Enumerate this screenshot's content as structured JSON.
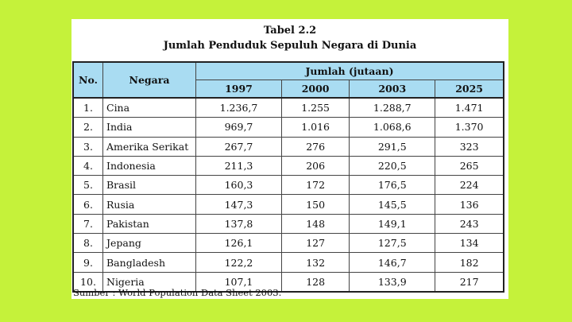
{
  "table_label": "Tabel 2.2",
  "table_title": "Jumlah Penduduk Sepuluh Negara di Dunia",
  "headers": {
    "no": "No.",
    "negara": "Negara",
    "jumlah": "Jumlah (jutaan)",
    "years": [
      "1997",
      "2000",
      "2003",
      "2025"
    ]
  },
  "rows": [
    {
      "no": "1.",
      "country": "Cina",
      "v1997": "1.236,7",
      "v2000": "1.255",
      "v2003": "1.288,7",
      "v2025": "1.471"
    },
    {
      "no": "2.",
      "country": "India",
      "v1997": "969,7",
      "v2000": "1.016",
      "v2003": "1.068,6",
      "v2025": "1.370"
    },
    {
      "no": "3.",
      "country": "Amerika Serikat",
      "v1997": "267,7",
      "v2000": "276",
      "v2003": "291,5",
      "v2025": "323"
    },
    {
      "no": "4.",
      "country": "Indonesia",
      "v1997": "211,3",
      "v2000": "206",
      "v2003": "220,5",
      "v2025": "265"
    },
    {
      "no": "5.",
      "country": "Brasil",
      "v1997": "160,3",
      "v2000": "172",
      "v2003": "176,5",
      "v2025": "224"
    },
    {
      "no": "6.",
      "country": "Rusia",
      "v1997": "147,3",
      "v2000": "150",
      "v2003": "145,5",
      "v2025": "136"
    },
    {
      "no": "7.",
      "country": "Pakistan",
      "v1997": "137,8",
      "v2000": "148",
      "v2003": "149,1",
      "v2025": "243"
    },
    {
      "no": "8.",
      "country": "Jepang",
      "v1997": "126,1",
      "v2000": "127",
      "v2003": "127,5",
      "v2025": "134"
    },
    {
      "no": "9.",
      "country": "Bangladesh",
      "v1997": "122,2",
      "v2000": "132",
      "v2003": "146,7",
      "v2025": "182"
    },
    {
      "no": "10.",
      "country": "Nigeria",
      "v1997": "107,1",
      "v2000": "128",
      "v2003": "133,9",
      "v2025": "217"
    }
  ],
  "source": "Sumber : World Population Data Sheet 2003.",
  "colors": {
    "background": "#c5f23a",
    "header_fill": "#a9dcf2"
  }
}
